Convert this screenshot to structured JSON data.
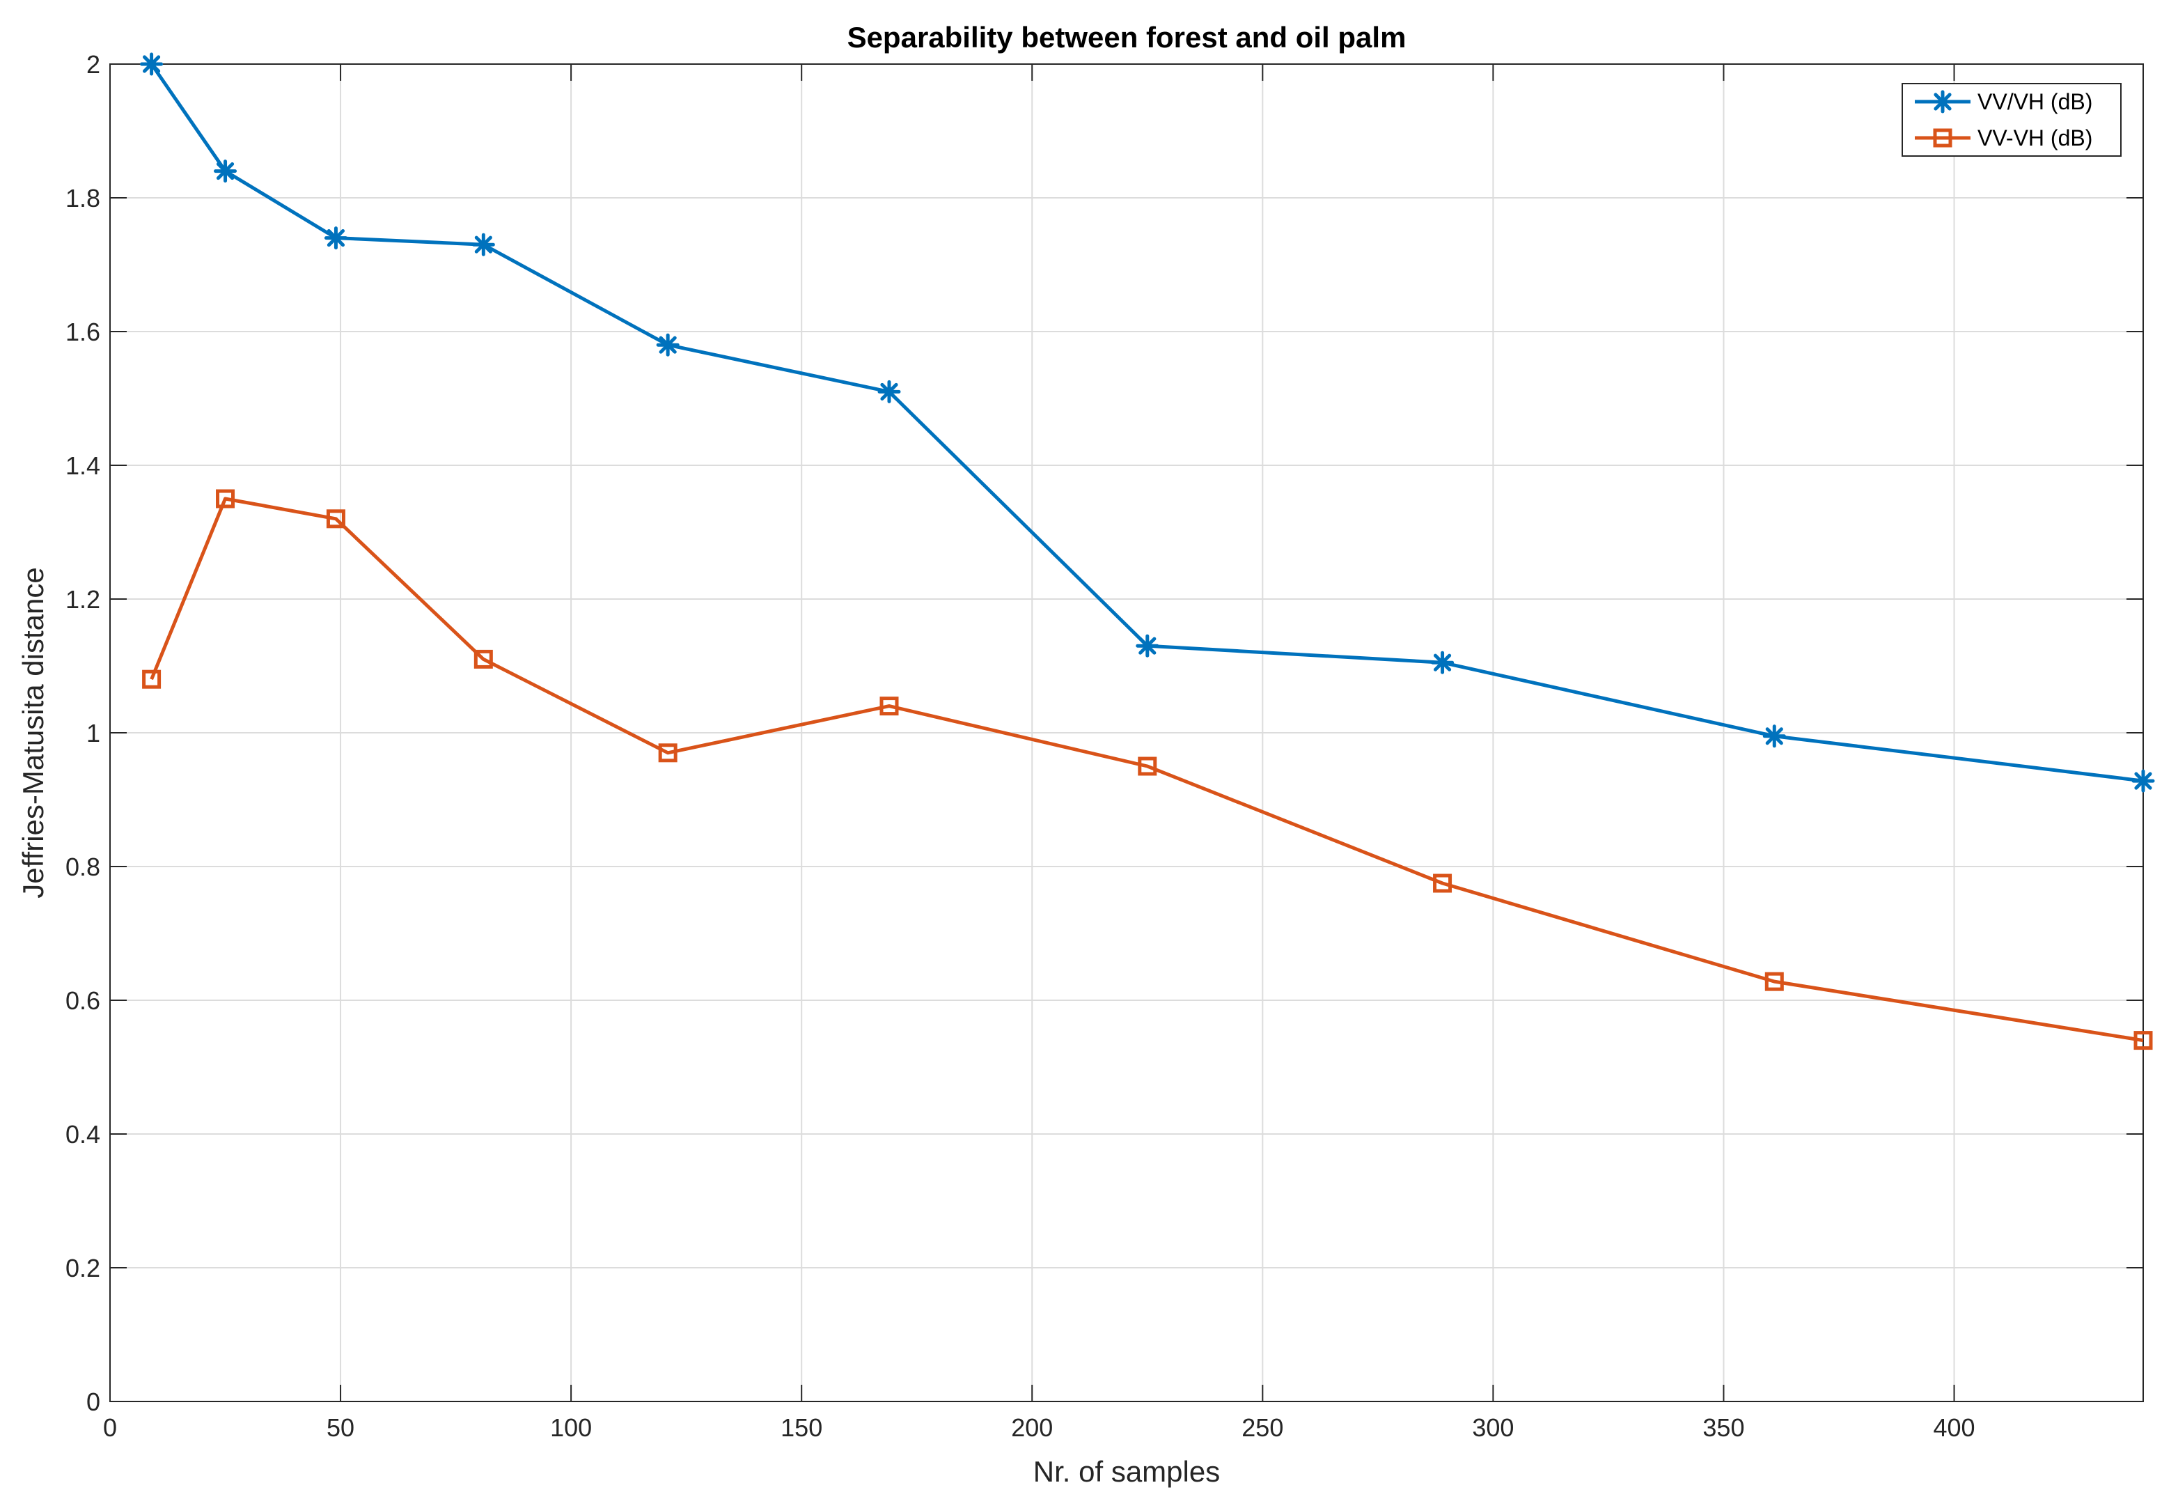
{
  "chart_data": {
    "type": "line",
    "title": "Separability between forest and oil palm",
    "xlabel": "Nr. of samples",
    "ylabel": "Jeffries-Matusita distance",
    "xlim": [
      0,
      441
    ],
    "ylim": [
      0,
      2
    ],
    "grid": true,
    "legend_position": "top-right",
    "x_ticks": [
      0,
      50,
      100,
      150,
      200,
      250,
      300,
      350,
      400
    ],
    "x_tick_labels": [
      "0",
      "50",
      "100",
      "150",
      "200",
      "250",
      "300",
      "350",
      "400"
    ],
    "y_ticks": [
      0,
      0.2,
      0.4,
      0.6,
      0.8,
      1,
      1.2,
      1.4,
      1.6,
      1.8,
      2
    ],
    "y_tick_labels": [
      "0",
      "0.2",
      "0.4",
      "0.6",
      "0.8",
      "1",
      "1.2",
      "1.4",
      "1.6",
      "1.8",
      "2"
    ],
    "x": [
      9,
      25,
      49,
      81,
      121,
      169,
      225,
      289,
      361,
      441
    ],
    "series": [
      {
        "name": "VV/VH (dB)",
        "color": "#0072BD",
        "marker": "asterisk",
        "values": [
          2.0,
          1.84,
          1.74,
          1.73,
          1.58,
          1.51,
          1.13,
          1.105,
          0.995,
          0.928
        ]
      },
      {
        "name": "VV-VH (dB)",
        "color": "#D95319",
        "marker": "square",
        "values": [
          1.08,
          1.35,
          1.32,
          1.11,
          0.97,
          1.04,
          0.95,
          0.775,
          0.628,
          0.54
        ]
      }
    ]
  }
}
